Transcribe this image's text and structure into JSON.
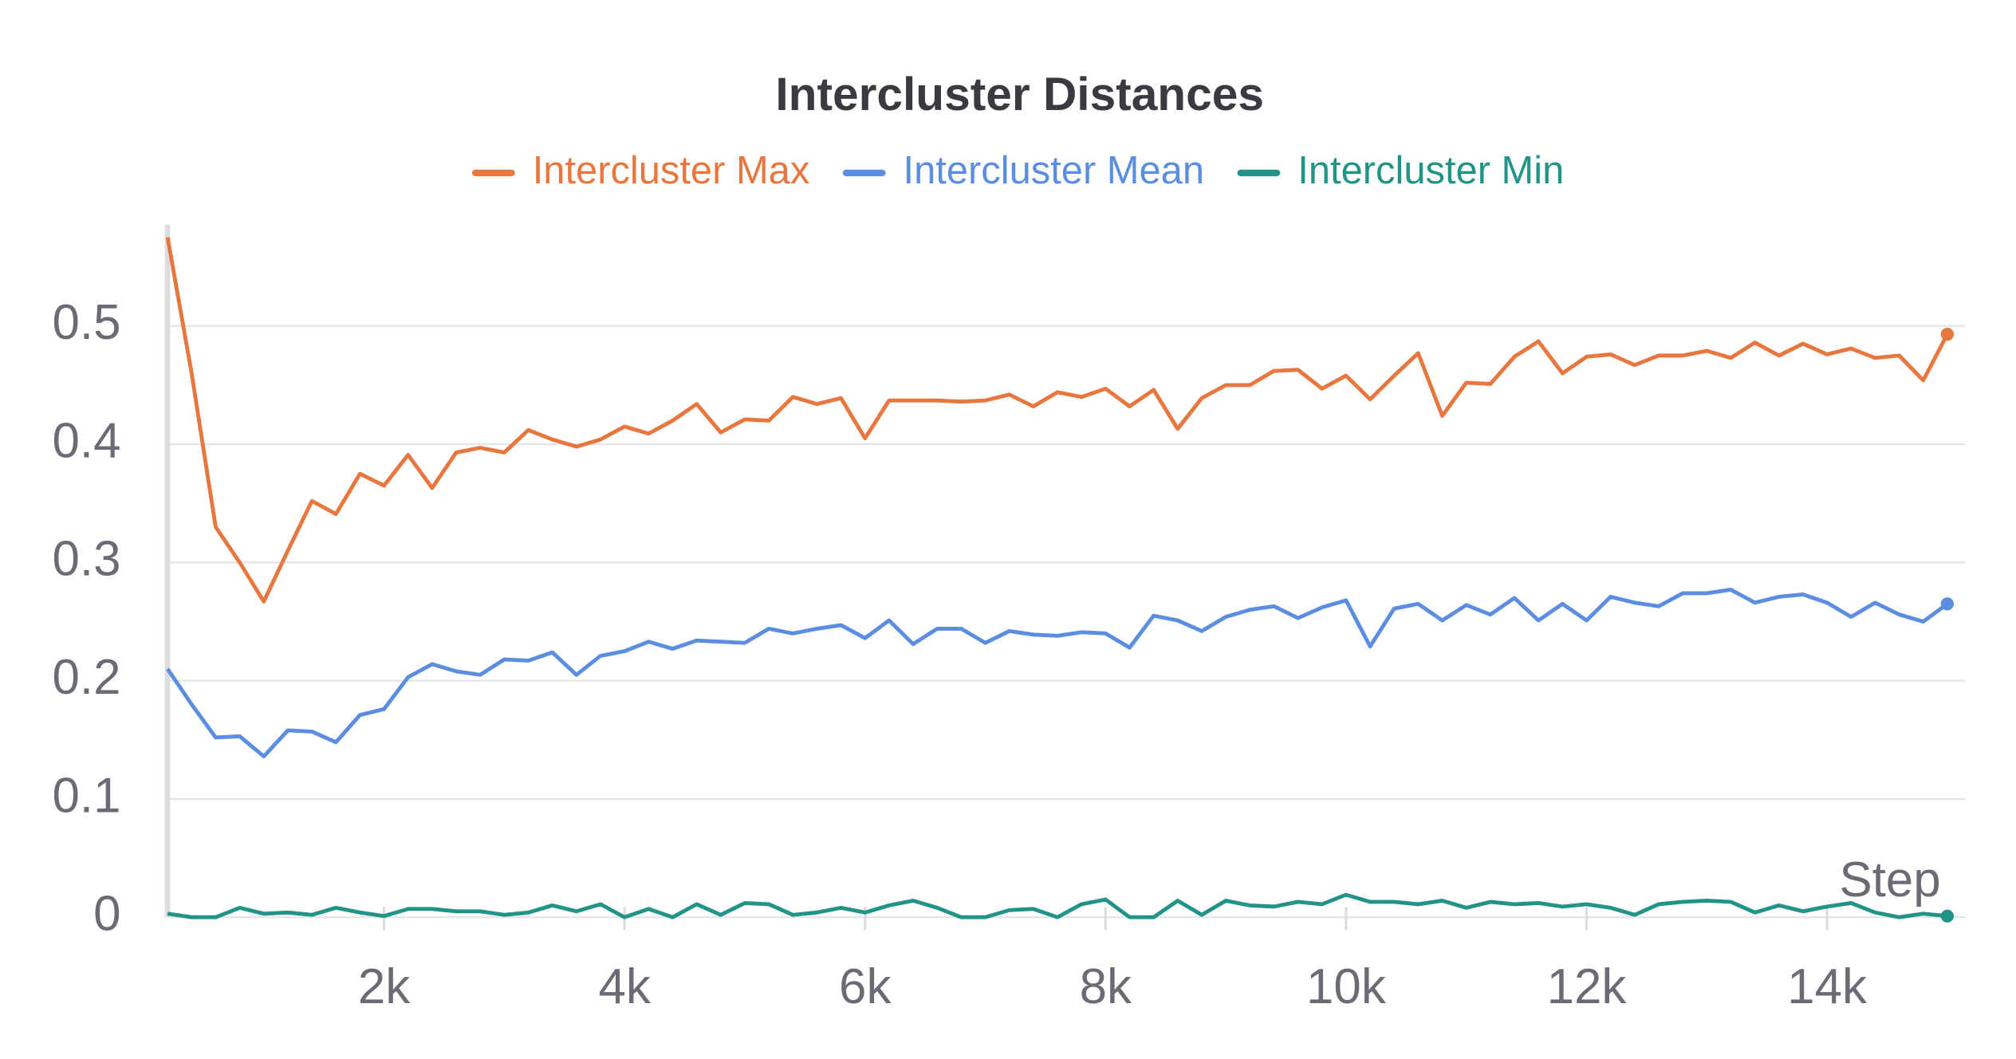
{
  "chart_data": {
    "type": "line",
    "title": "Intercluster Distances",
    "x_label": "Step",
    "x": [
      200,
      400,
      600,
      800,
      1000,
      1200,
      1400,
      1600,
      1800,
      2000,
      2200,
      2400,
      2600,
      2800,
      3000,
      3200,
      3400,
      3600,
      3800,
      4000,
      4200,
      4400,
      4600,
      4800,
      5000,
      5200,
      5400,
      5600,
      5800,
      6000,
      6200,
      6400,
      6600,
      6800,
      7000,
      7200,
      7400,
      7600,
      7800,
      8000,
      8200,
      8400,
      8600,
      8800,
      9000,
      9200,
      9400,
      9600,
      9800,
      10000,
      10200,
      10400,
      10600,
      10800,
      11000,
      11200,
      11400,
      11600,
      11800,
      12000,
      12200,
      12400,
      12600,
      12800,
      13000,
      13200,
      13400,
      13600,
      13800,
      14000,
      14200,
      14400,
      14600,
      14800,
      15000
    ],
    "series": [
      {
        "name": "Intercluster Max",
        "color": "#e8773f",
        "values": [
          0.575,
          0.46,
          0.33,
          0.3,
          0.267,
          0.31,
          0.352,
          0.341,
          0.375,
          0.365,
          0.391,
          0.363,
          0.393,
          0.397,
          0.393,
          0.412,
          0.404,
          0.398,
          0.404,
          0.415,
          0.409,
          0.42,
          0.434,
          0.41,
          0.421,
          0.42,
          0.44,
          0.434,
          0.439,
          0.405,
          0.437,
          0.437,
          0.437,
          0.436,
          0.437,
          0.442,
          0.432,
          0.444,
          0.44,
          0.447,
          0.432,
          0.446,
          0.413,
          0.439,
          0.45,
          0.45,
          0.462,
          0.463,
          0.447,
          0.458,
          0.438,
          0.458,
          0.477,
          0.424,
          0.452,
          0.451,
          0.474,
          0.487,
          0.46,
          0.474,
          0.476,
          0.467,
          0.475,
          0.475,
          0.479,
          0.473,
          0.486,
          0.475,
          0.485,
          0.476,
          0.481,
          0.473,
          0.475,
          0.454,
          0.493
        ]
      },
      {
        "name": "Intercluster Mean",
        "color": "#5b8de0",
        "values": [
          0.21,
          0.18,
          0.152,
          0.153,
          0.136,
          0.158,
          0.157,
          0.148,
          0.171,
          0.176,
          0.203,
          0.214,
          0.208,
          0.205,
          0.218,
          0.217,
          0.224,
          0.205,
          0.221,
          0.225,
          0.233,
          0.227,
          0.234,
          0.233,
          0.232,
          0.244,
          0.24,
          0.244,
          0.247,
          0.236,
          0.251,
          0.231,
          0.244,
          0.244,
          0.232,
          0.242,
          0.239,
          0.238,
          0.241,
          0.24,
          0.228,
          0.255,
          0.251,
          0.242,
          0.254,
          0.26,
          0.263,
          0.253,
          0.262,
          0.268,
          0.229,
          0.261,
          0.265,
          0.251,
          0.264,
          0.256,
          0.27,
          0.251,
          0.265,
          0.251,
          0.271,
          0.266,
          0.263,
          0.274,
          0.274,
          0.277,
          0.266,
          0.271,
          0.273,
          0.266,
          0.254,
          0.266,
          0.256,
          0.25,
          0.265
        ]
      },
      {
        "name": "Intercluster Min",
        "color": "#229487",
        "values": [
          0.003,
          0,
          0,
          0.008,
          0.003,
          0.004,
          0.002,
          0.008,
          0.004,
          0.001,
          0.007,
          0.007,
          0.005,
          0.005,
          0.002,
          0.004,
          0.01,
          0.005,
          0.011,
          0,
          0.007,
          0,
          0.011,
          0.002,
          0.012,
          0.011,
          0.002,
          0.004,
          0.008,
          0.004,
          0.01,
          0.014,
          0.008,
          0,
          0,
          0.006,
          0.007,
          0,
          0.011,
          0.015,
          0,
          0,
          0.014,
          0.002,
          0.014,
          0.01,
          0.009,
          0.013,
          0.011,
          0.019,
          0.013,
          0.013,
          0.011,
          0.014,
          0.008,
          0.013,
          0.011,
          0.012,
          0.009,
          0.011,
          0.008,
          0.002,
          0.011,
          0.013,
          0.014,
          0.013,
          0.004,
          0.01,
          0.005,
          0.009,
          0.012,
          0.004,
          0,
          0.003,
          0.001
        ]
      }
    ],
    "xlim": [
      200,
      15150
    ],
    "xticks": [
      {
        "value": 2000,
        "label": "2k"
      },
      {
        "value": 4000,
        "label": "4k"
      },
      {
        "value": 6000,
        "label": "6k"
      },
      {
        "value": 8000,
        "label": "8k"
      },
      {
        "value": 10000,
        "label": "10k"
      },
      {
        "value": 12000,
        "label": "12k"
      },
      {
        "value": 14000,
        "label": "14k"
      }
    ],
    "ylim": [
      0,
      0.58
    ],
    "yticks": [
      0,
      0.1,
      0.2,
      0.3,
      0.4,
      0.5
    ],
    "grid": true
  }
}
